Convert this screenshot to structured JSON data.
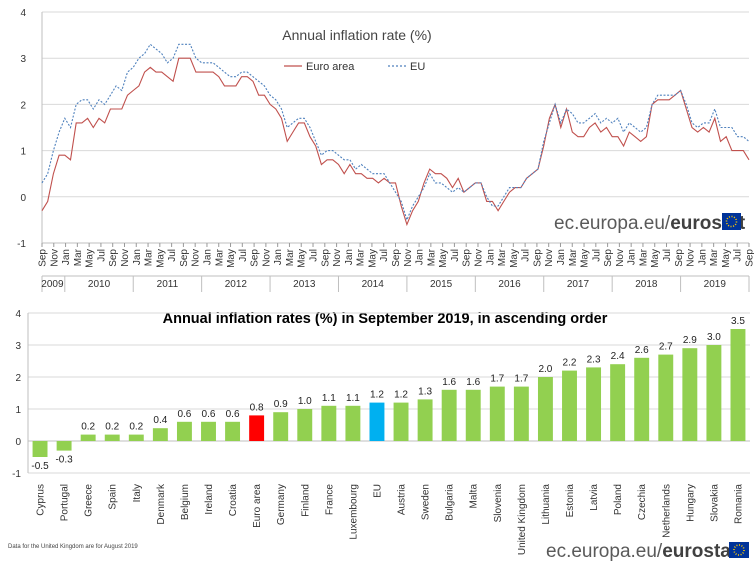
{
  "chart_data": [
    {
      "type": "line",
      "title": "Annual inflation rate (%)",
      "ylim": [
        -1,
        4
      ],
      "yticks": [
        "-1",
        "0",
        "1",
        "2",
        "3",
        "4"
      ],
      "grid": true,
      "legend_position": "top-center",
      "month_labels": [
        "Sep",
        "Nov",
        "Jan",
        "Mar",
        "May",
        "Jul",
        "Sep",
        "Nov",
        "Jan",
        "Mar",
        "May",
        "Jul",
        "Sep",
        "Nov",
        "Jan",
        "Mar",
        "May",
        "Jul",
        "Sep",
        "Nov",
        "Jan",
        "Mar",
        "May",
        "Jul",
        "Sep",
        "Nov",
        "Jan",
        "Mar",
        "May",
        "Jul",
        "Sep",
        "Nov",
        "Jan",
        "Mar",
        "May",
        "Jul",
        "Sep",
        "Nov",
        "Jan",
        "Mar",
        "May",
        "Jul",
        "Sep",
        "Nov",
        "Jan",
        "Mar",
        "May",
        "Jul",
        "Sep",
        "Nov",
        "Jan",
        "Mar",
        "May",
        "Jul",
        "Sep",
        "Nov",
        "Jan",
        "Mar",
        "May",
        "Jul",
        "Sep"
      ],
      "years": [
        "2009",
        "2010",
        "2011",
        "2012",
        "2013",
        "2014",
        "2015",
        "2016",
        "2017",
        "2018",
        "2019"
      ],
      "series": [
        {
          "name": "Euro area",
          "color": "#c0504d",
          "style": "solid",
          "values": [
            -0.3,
            -0.1,
            0.5,
            0.9,
            0.9,
            0.8,
            1.6,
            1.6,
            1.7,
            1.5,
            1.7,
            1.6,
            1.9,
            1.9,
            1.9,
            2.2,
            2.3,
            2.4,
            2.7,
            2.8,
            2.7,
            2.7,
            2.6,
            2.5,
            3.0,
            3.0,
            3.0,
            2.7,
            2.7,
            2.7,
            2.7,
            2.6,
            2.4,
            2.4,
            2.4,
            2.6,
            2.6,
            2.5,
            2.2,
            2.2,
            2.0,
            1.9,
            1.7,
            1.2,
            1.4,
            1.6,
            1.6,
            1.3,
            1.1,
            0.7,
            0.8,
            0.8,
            0.7,
            0.5,
            0.7,
            0.5,
            0.5,
            0.4,
            0.4,
            0.3,
            0.4,
            0.3,
            0.3,
            -0.2,
            -0.6,
            -0.3,
            -0.1,
            0.3,
            0.6,
            0.5,
            0.5,
            0.4,
            0.2,
            0.4,
            0.1,
            0.2,
            0.3,
            0.3,
            -0.1,
            -0.1,
            -0.3,
            -0.1,
            0.1,
            0.2,
            0.2,
            0.4,
            0.5,
            0.6,
            1.1,
            1.7,
            2.0,
            1.5,
            1.9,
            1.4,
            1.3,
            1.3,
            1.5,
            1.6,
            1.4,
            1.5,
            1.3,
            1.3,
            1.1,
            1.4,
            1.3,
            1.2,
            1.3,
            2.0,
            2.1,
            2.1,
            2.1,
            2.2,
            2.3,
            1.9,
            1.5,
            1.4,
            1.5,
            1.4,
            1.7,
            1.2,
            1.3,
            1.0,
            1.0,
            1.0,
            0.8
          ]
        },
        {
          "name": "EU",
          "color": "#4f81bd",
          "style": "dotted",
          "values": [
            0.3,
            0.5,
            1.0,
            1.4,
            1.7,
            1.5,
            2.0,
            2.1,
            2.1,
            1.9,
            2.1,
            2.0,
            2.2,
            2.4,
            2.3,
            2.7,
            2.8,
            3.0,
            3.1,
            3.3,
            3.2,
            3.1,
            2.9,
            3.0,
            3.3,
            3.3,
            3.3,
            3.0,
            2.9,
            2.9,
            2.9,
            2.8,
            2.7,
            2.6,
            2.6,
            2.7,
            2.7,
            2.6,
            2.5,
            2.4,
            2.2,
            2.1,
            1.9,
            1.5,
            1.6,
            1.7,
            1.7,
            1.5,
            1.2,
            0.9,
            1.0,
            1.0,
            0.9,
            0.8,
            0.8,
            0.6,
            0.7,
            0.6,
            0.5,
            0.5,
            0.5,
            0.3,
            0.1,
            -0.1,
            -0.5,
            -0.2,
            0.0,
            0.2,
            0.5,
            0.3,
            0.3,
            0.2,
            0.1,
            0.2,
            0.1,
            0.2,
            0.3,
            0.3,
            0.0,
            -0.2,
            -0.2,
            0.0,
            0.2,
            0.2,
            0.2,
            0.4,
            0.5,
            0.6,
            1.2,
            1.6,
            2.0,
            1.6,
            1.9,
            1.8,
            1.6,
            1.6,
            1.7,
            1.8,
            1.6,
            1.7,
            1.6,
            1.7,
            1.4,
            1.6,
            1.5,
            1.4,
            1.5,
            2.0,
            2.2,
            2.2,
            2.2,
            2.2,
            2.3,
            2.0,
            1.6,
            1.5,
            1.6,
            1.6,
            1.9,
            1.5,
            1.5,
            1.5,
            1.3,
            1.3,
            1.2
          ]
        }
      ]
    },
    {
      "type": "bar",
      "title": "Annual inflation rates (%) in September 2019, in ascending order",
      "ylim": [
        -1,
        4
      ],
      "yticks": [
        "-1",
        "0",
        "1",
        "2",
        "3",
        "4"
      ],
      "grid": true,
      "colors": {
        "default": "#92d050",
        "euro_area": "#ff0000",
        "eu": "#00b0f0"
      },
      "categories": [
        "Cyprus",
        "Portugal",
        "Greece",
        "Spain",
        "Italy",
        "Denmark",
        "Belgium",
        "Ireland",
        "Croatia",
        "Euro area",
        "Germany",
        "Finland",
        "France",
        "Luxembourg",
        "EU",
        "Austria",
        "Sweden",
        "Bulgaria",
        "Malta",
        "Slovenia",
        "United Kingdom",
        "Lithuania",
        "Estonia",
        "Latvia",
        "Poland",
        "Czechia",
        "Netherlands",
        "Hungary",
        "Slovakia",
        "Romania"
      ],
      "values": [
        -0.5,
        -0.3,
        0.2,
        0.2,
        0.2,
        0.4,
        0.6,
        0.6,
        0.6,
        0.8,
        0.9,
        1.0,
        1.1,
        1.1,
        1.2,
        1.2,
        1.3,
        1.6,
        1.6,
        1.7,
        1.7,
        2.0,
        2.2,
        2.3,
        2.4,
        2.6,
        2.7,
        2.9,
        3.0,
        3.5
      ],
      "value_labels": [
        "-0.5",
        "-0.3",
        "0.2",
        "0.2",
        "0.2",
        "0.4",
        "0.6",
        "0.6",
        "0.6",
        "0.8",
        "0.9",
        "1.0",
        "1.1",
        "1.1",
        "1.2",
        "1.2",
        "1.3",
        "1.6",
        "1.6",
        "1.7",
        "1.7",
        "2.0",
        "2.2",
        "2.3",
        "2.4",
        "2.6",
        "2.7",
        "2.9",
        "3.0",
        "3.5"
      ]
    }
  ],
  "footnote": "Data for the United Kingdom are for August 2019",
  "brand": {
    "prefix": "ec.europa.eu/",
    "name": "eurostat",
    "flag_blue": "#003399",
    "star_color": "#ffcc00"
  }
}
